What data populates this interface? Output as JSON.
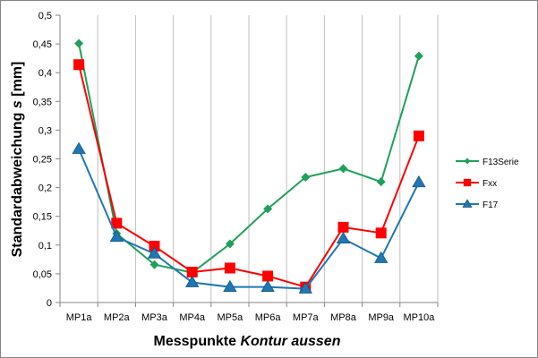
{
  "chart_data": {
    "type": "line",
    "title": "",
    "xlabel_main": "Messpunkte",
    "xlabel_italic": "Kontur aussen",
    "ylabel_main": "Standardabweichung",
    "ylabel_italic": "s",
    "ylabel_unit": "[mm]",
    "categories": [
      "MP1a",
      "MP2a",
      "MP3a",
      "MP4a",
      "MP5a",
      "MP6a",
      "MP7a",
      "MP8a",
      "MP9a",
      "MP10a"
    ],
    "ylim": [
      0,
      0.5
    ],
    "yticks": [
      0,
      0.05,
      0.1,
      0.15,
      0.2,
      0.25,
      0.3,
      0.35,
      0.4,
      0.45,
      0.5
    ],
    "ytick_labels": [
      "0",
      "0,05",
      "0,1",
      "0,15",
      "0,2",
      "0,25",
      "0,3",
      "0,35",
      "0,4",
      "0,45",
      "0,5"
    ],
    "grid": "vertical-category-gridlines",
    "legend_position": "right",
    "series": [
      {
        "name": "F13Serie",
        "color": "#1ea15a",
        "marker": "diamond",
        "values": [
          0.451,
          0.12,
          0.066,
          0.052,
          0.102,
          0.163,
          0.218,
          0.233,
          0.21,
          0.429
        ]
      },
      {
        "name": "Fxx",
        "color": "#ff0000",
        "marker": "square",
        "values": [
          0.414,
          0.138,
          0.098,
          0.053,
          0.06,
          0.046,
          0.027,
          0.131,
          0.121,
          0.29
        ]
      },
      {
        "name": "F17",
        "color": "#1f77b4",
        "marker": "triangle",
        "values": [
          0.267,
          0.114,
          0.085,
          0.035,
          0.027,
          0.027,
          0.024,
          0.111,
          0.077,
          0.209
        ]
      }
    ]
  }
}
